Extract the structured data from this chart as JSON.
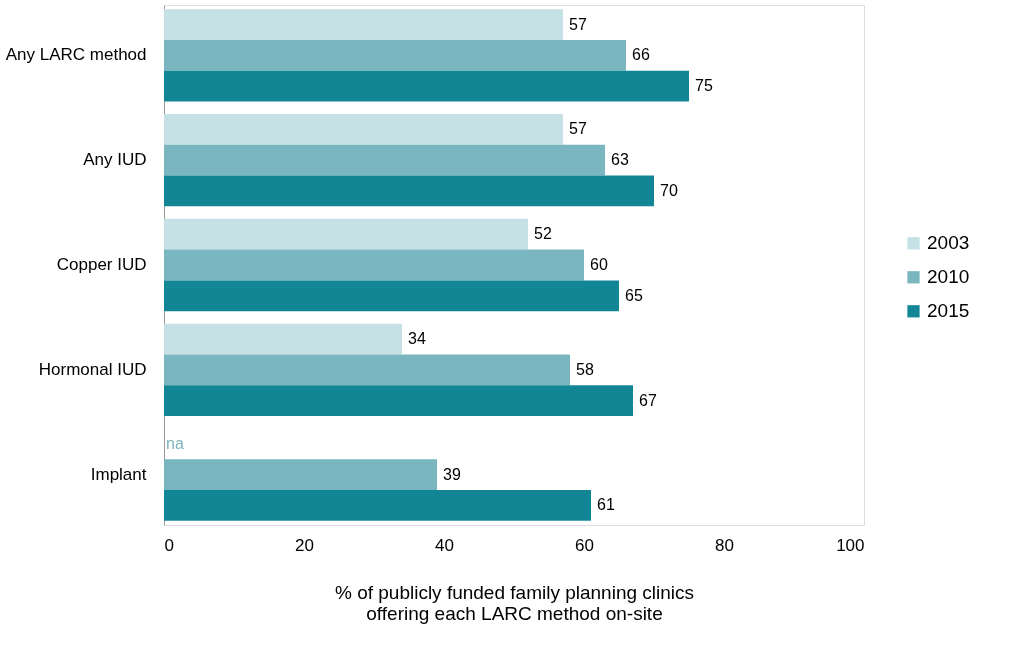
{
  "chart_data": {
    "type": "bar",
    "orientation": "horizontal",
    "categories": [
      "Any LARC method",
      "Any IUD",
      "Copper IUD",
      "Hormonal IUD",
      "Implant"
    ],
    "series": [
      {
        "name": "2003",
        "color": "#c6e1e5",
        "values": [
          57,
          57,
          52,
          34,
          null
        ],
        "value_labels": [
          "57",
          "57",
          "52",
          "34",
          "na"
        ]
      },
      {
        "name": "2010",
        "color": "#7ab6bf",
        "values": [
          66,
          63,
          60,
          58,
          39
        ],
        "value_labels": [
          "66",
          "63",
          "60",
          "58",
          "39"
        ]
      },
      {
        "name": "2015",
        "color": "#138696",
        "values": [
          75,
          70,
          65,
          67,
          61
        ],
        "value_labels": [
          "75",
          "70",
          "65",
          "67",
          "61"
        ]
      }
    ],
    "xlim": [
      0,
      100
    ],
    "xticks": [
      0,
      20,
      40,
      60,
      80,
      100
    ],
    "grid": false,
    "legend": "right",
    "xlabel": "% of publicly funded family planning clinics\noffering each LARC method on-site"
  }
}
